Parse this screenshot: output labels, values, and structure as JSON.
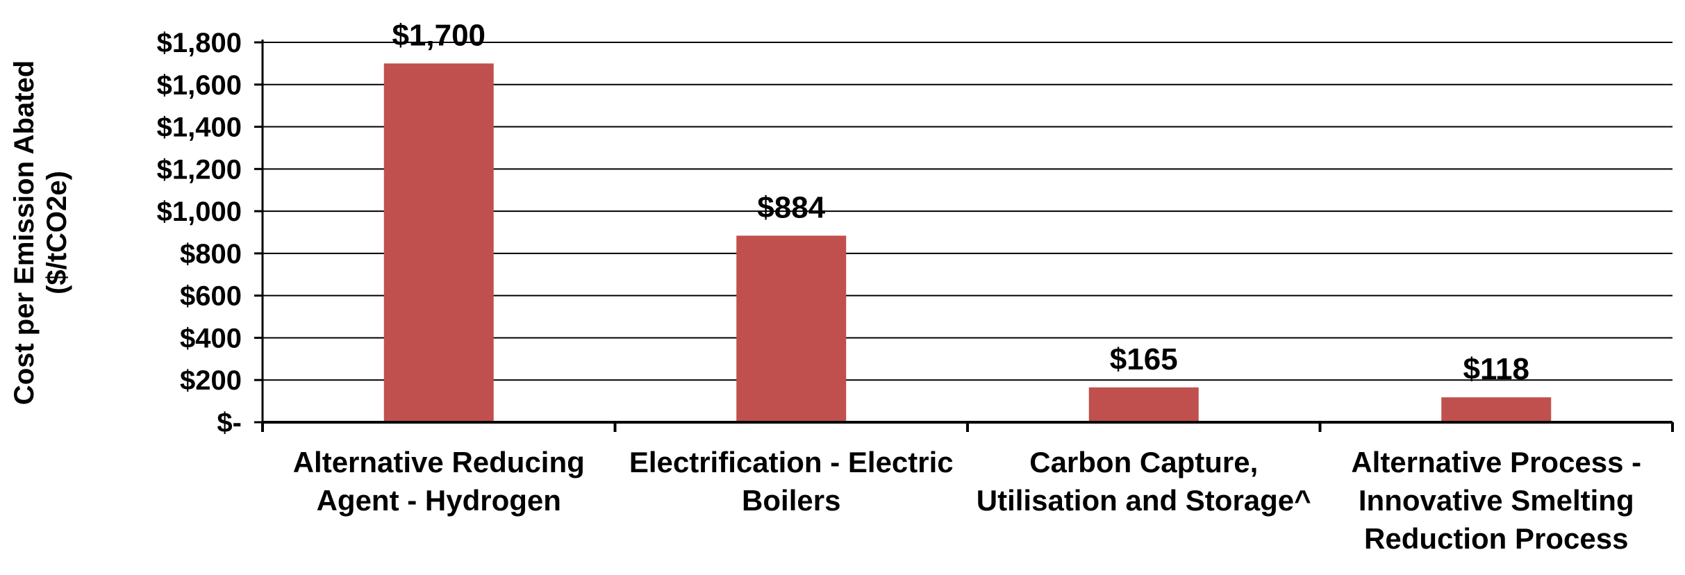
{
  "chart_data": {
    "type": "bar",
    "title": "",
    "xlabel": "",
    "ylabel": [
      "Cost per Emission Abated",
      "($/tCO2e)"
    ],
    "categories": [
      [
        "Alternative Reducing",
        "Agent - Hydrogen"
      ],
      [
        "Electrification - Electric",
        "Boilers"
      ],
      [
        "Carbon Capture,",
        "Utilisation and Storage^"
      ],
      [
        "Alternative Process -",
        "Innovative Smelting",
        "Reduction Process"
      ]
    ],
    "values": [
      1700,
      884,
      165,
      118
    ],
    "data_labels": [
      "$1,700",
      "$884",
      "$165",
      "$118"
    ],
    "ylim": [
      0,
      1800
    ],
    "yticks": [
      0,
      200,
      400,
      600,
      800,
      1000,
      1200,
      1400,
      1600,
      1800
    ],
    "ytick_labels": [
      "$-",
      "$200",
      "$400",
      "$600",
      "$800",
      "$1,000",
      "$1,200",
      "$1,400",
      "$1,600",
      "$1,800"
    ],
    "grid": true,
    "legend": "none",
    "bar_color": "#c0504d"
  }
}
